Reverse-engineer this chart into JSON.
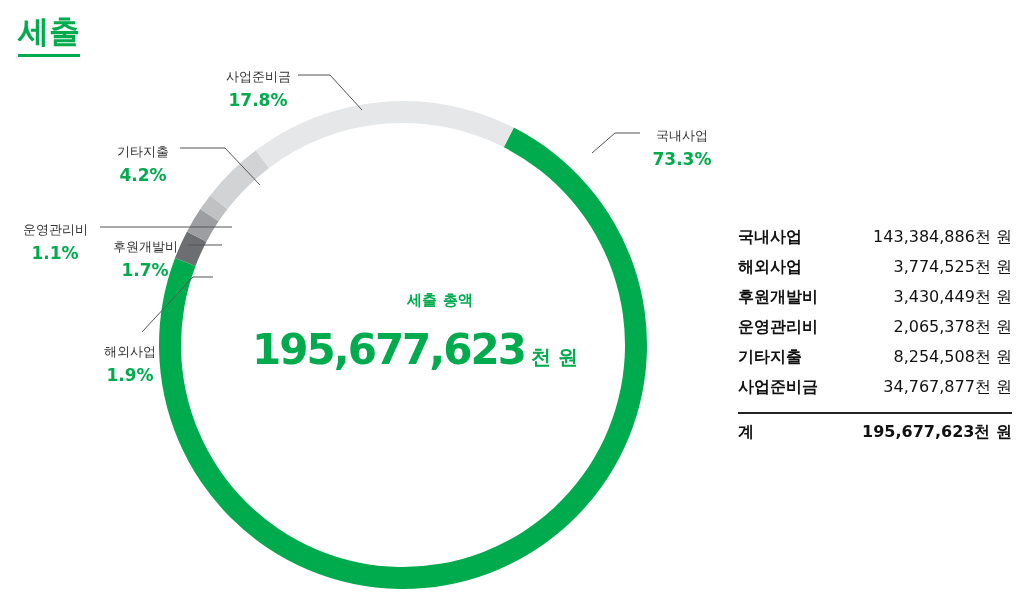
{
  "chart_data": {
    "type": "donut",
    "title": "세출",
    "categories": [
      "국내사업",
      "해외사업",
      "후원개발비",
      "운영관리비",
      "기타지출",
      "사업준비금"
    ],
    "values": [
      73.3,
      1.9,
      1.7,
      1.1,
      4.2,
      17.8
    ],
    "colors": [
      "#00ab4e",
      "#6d6e71",
      "#9d9ea1",
      "#c0c1c3",
      "#d2d3d5",
      "#e6e7e8"
    ],
    "value_labels": [
      "73.3%",
      "1.9%",
      "1.7%",
      "1.1%",
      "4.2%",
      "17.8%"
    ],
    "annotations": [
      "세출 총액",
      "195,677,623",
      "천 원",
      "계",
      "143,384,886",
      "3,774,525",
      "3,430,449",
      "2,065,378",
      "8,254,508",
      "34,767,877"
    ]
  }
}
